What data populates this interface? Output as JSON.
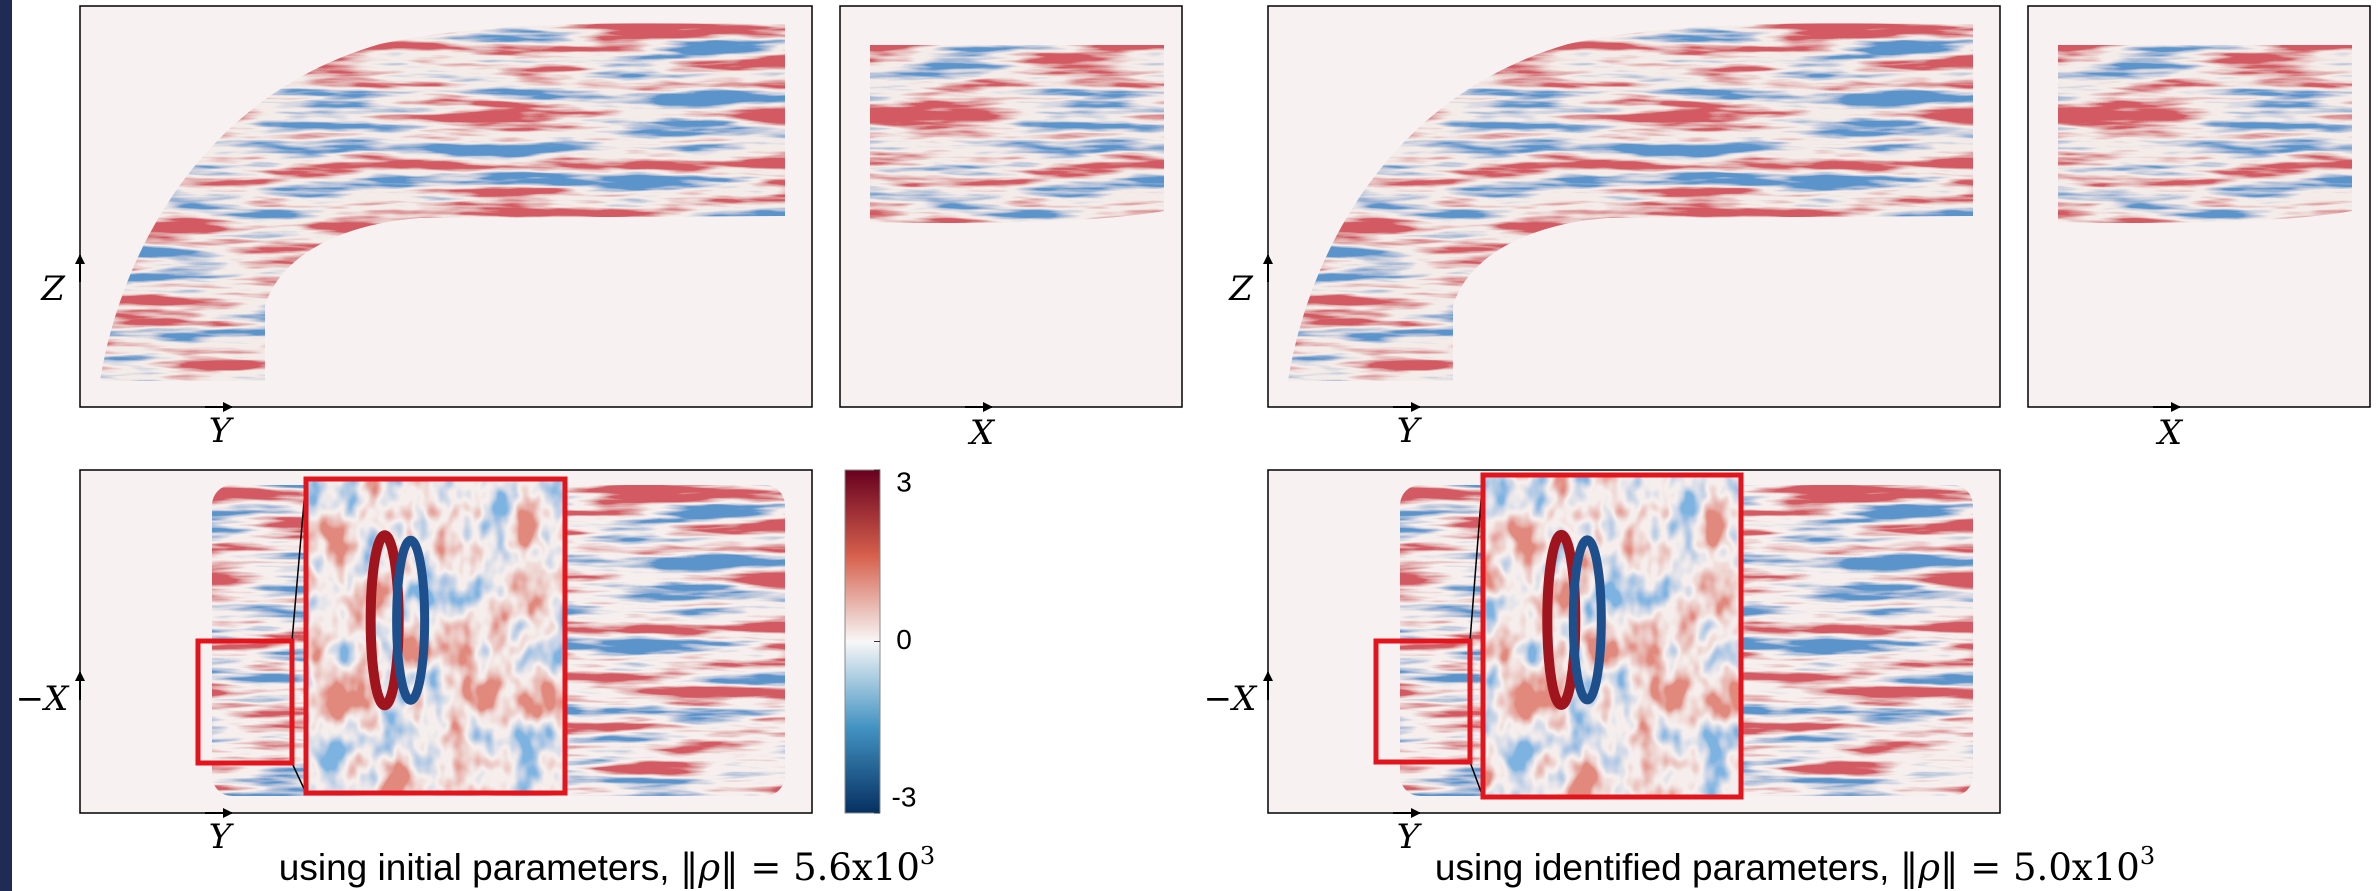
{
  "panels": [
    {
      "axes": {
        "top_left_vertical": "Z",
        "top_left_horizontal": "Y",
        "top_right_horizontal": "X",
        "bottom_vertical": "−X",
        "bottom_horizontal": "Y"
      },
      "caption": {
        "text": "using initial parameters, ",
        "norm": "‖ρ‖",
        "equals": " = ",
        "value": "5.6x10",
        "exponent": "3"
      }
    },
    {
      "axes": {
        "top_left_vertical": "Z",
        "top_left_horizontal": "Y",
        "top_right_horizontal": "X",
        "bottom_vertical": "−X",
        "bottom_horizontal": "Y"
      },
      "caption": {
        "text": "using identified parameters, ",
        "norm": "‖ρ‖",
        "equals": " = ",
        "value": "5.0x10",
        "exponent": "3"
      }
    }
  ],
  "colorbar": {
    "ticks": [
      3,
      0,
      -3
    ],
    "range": [
      -3,
      3
    ]
  }
}
